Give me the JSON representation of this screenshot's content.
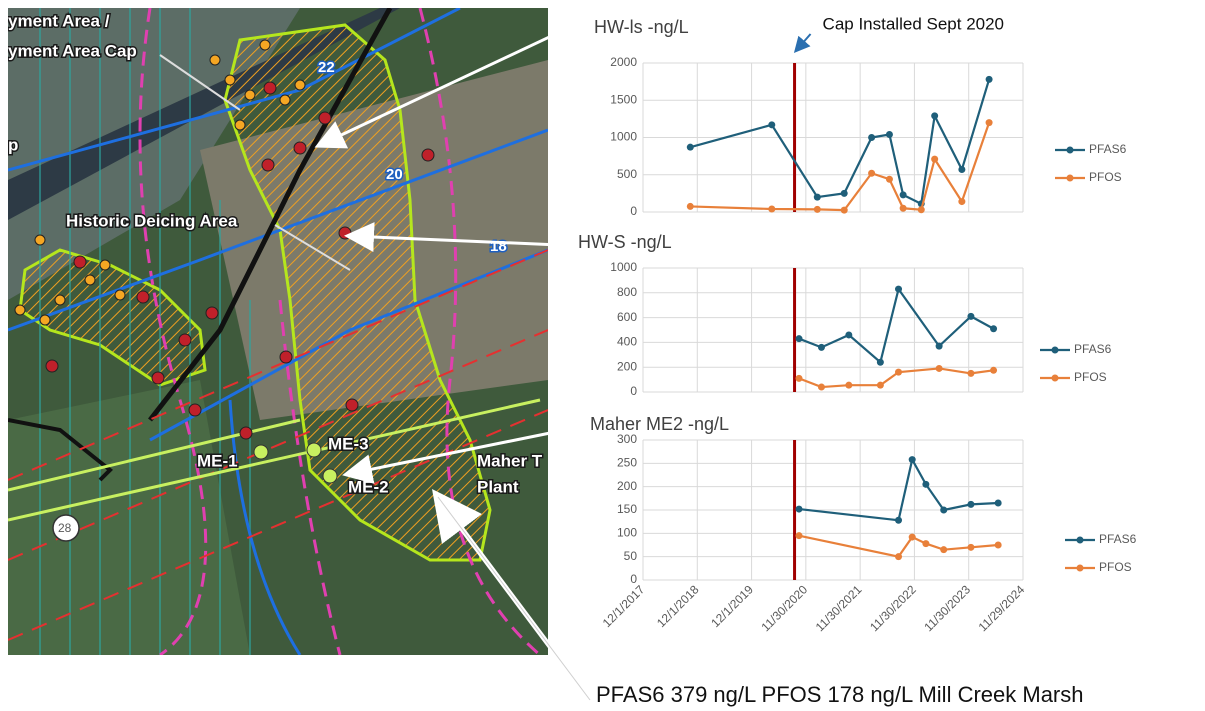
{
  "map": {
    "labels": [
      "yment Area /",
      "yment Area Cap",
      "p",
      "Historic Deicing Area",
      "ME-1",
      "ME-3",
      "ME-2",
      "Maher T",
      "Plant",
      "22",
      "20",
      "18",
      "28"
    ]
  },
  "footer": "PFAS6 379 ng/L PFOS 178 ng/L  Mill Creek Marsh",
  "chart_data": [
    {
      "type": "line",
      "title": "HW-ls -ng/L",
      "annotation": {
        "text": "Cap Installed Sept 2020",
        "x": "9/15/2020",
        "color": "#a00000"
      },
      "xlim": [
        "12/1/2017",
        "11/29/2024"
      ],
      "xticks": [
        "12/1/2017",
        "12/1/2018",
        "12/1/2019",
        "11/30/2020",
        "11/30/2021",
        "11/30/2022",
        "11/30/2023",
        "11/29/2024"
      ],
      "ylim": [
        0,
        2000
      ],
      "yticks": [
        0,
        500,
        1000,
        1500,
        2000
      ],
      "grid": true,
      "x": [
        "10/15/2018",
        "4/15/2020",
        "2/15/2021",
        "8/15/2021",
        "2/15/2022",
        "6/15/2022",
        "9/15/2022",
        "1/15/2023",
        "4/15/2023",
        "10/15/2023",
        "4/15/2024"
      ],
      "series": [
        {
          "name": "PFAS6",
          "color": "#1f5f7a",
          "values": [
            870,
            1170,
            200,
            250,
            1000,
            1040,
            230,
            110,
            1290,
            570,
            1780
          ]
        },
        {
          "name": "PFOS",
          "color": "#e8803a",
          "values": [
            75,
            40,
            35,
            25,
            520,
            440,
            50,
            30,
            710,
            140,
            1200
          ]
        }
      ]
    },
    {
      "type": "line",
      "title": "HW-S -ng/L",
      "annotation": {
        "x": "9/15/2020",
        "color": "#a00000"
      },
      "xlim": [
        "12/1/2017",
        "11/29/2024"
      ],
      "xticks": [
        "12/1/2017",
        "12/1/2018",
        "12/1/2019",
        "11/30/2020",
        "11/30/2021",
        "11/30/2022",
        "11/30/2023",
        "11/29/2024"
      ],
      "ylim": [
        0,
        1000
      ],
      "yticks": [
        0,
        200,
        400,
        600,
        800,
        1000
      ],
      "grid": true,
      "x": [
        "10/15/2020",
        "3/15/2021",
        "9/15/2021",
        "4/15/2022",
        "8/15/2022",
        "5/15/2023",
        "12/15/2023",
        "5/15/2024"
      ],
      "series": [
        {
          "name": "PFAS6",
          "color": "#1f5f7a",
          "values": [
            430,
            360,
            460,
            240,
            830,
            370,
            610,
            510
          ]
        },
        {
          "name": "PFOS",
          "color": "#e8803a",
          "values": [
            110,
            40,
            55,
            55,
            160,
            190,
            150,
            175
          ]
        }
      ]
    },
    {
      "type": "line",
      "title": "Maher ME2 -ng/L",
      "annotation": {
        "x": "9/15/2020",
        "color": "#a00000"
      },
      "xlim": [
        "12/1/2017",
        "11/29/2024"
      ],
      "xticks": [
        "12/1/2017",
        "12/1/2018",
        "12/1/2019",
        "11/30/2020",
        "11/30/2021",
        "11/30/2022",
        "11/30/2023",
        "11/29/2024"
      ],
      "ylim": [
        0,
        300
      ],
      "yticks": [
        0,
        50,
        100,
        150,
        200,
        250,
        300
      ],
      "grid": true,
      "x": [
        "10/15/2020",
        "8/15/2022",
        "11/15/2022",
        "2/15/2023",
        "6/15/2023",
        "12/15/2023",
        "6/15/2024"
      ],
      "series": [
        {
          "name": "PFAS6",
          "color": "#1f5f7a",
          "values": [
            152,
            128,
            258,
            205,
            150,
            162,
            165
          ]
        },
        {
          "name": "PFOS",
          "color": "#e8803a",
          "values": [
            95,
            50,
            92,
            78,
            65,
            70,
            75
          ]
        }
      ]
    }
  ]
}
